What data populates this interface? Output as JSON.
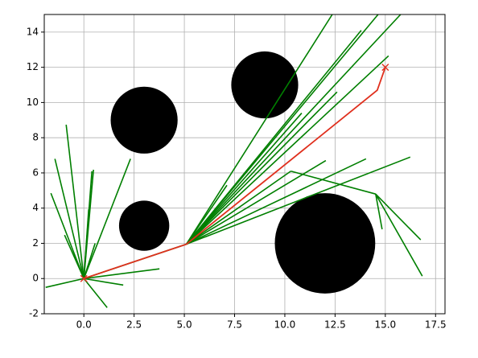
{
  "chart_data": {
    "type": "tree",
    "xlim": [
      -1.97,
      17.97
    ],
    "ylim": [
      -2,
      15
    ],
    "xticks": [
      {
        "value": 0,
        "label": "0.0"
      },
      {
        "value": 2.5,
        "label": "2.5"
      },
      {
        "value": 5,
        "label": "5.0"
      },
      {
        "value": 7.5,
        "label": "7.5"
      },
      {
        "value": 10,
        "label": "10.0"
      },
      {
        "value": 12.5,
        "label": "12.5"
      },
      {
        "value": 15,
        "label": "15.0"
      },
      {
        "value": 17.5,
        "label": "17.5"
      }
    ],
    "yticks": [
      -2,
      0,
      2,
      4,
      6,
      8,
      10,
      12,
      14
    ],
    "grid": true,
    "obstacles": {
      "color": "#000000",
      "x": [
        3,
        3,
        9,
        12
      ],
      "y": [
        9,
        3,
        11,
        2
      ],
      "size": [
        2,
        1.5,
        2,
        3
      ]
    },
    "tree": {
      "color": "#007f00",
      "edges": [
        [
          0,
          0,
          -1.9,
          -0.5
        ],
        [
          0,
          0,
          -1.64,
          4.85
        ],
        [
          0,
          0,
          -1.44,
          6.8
        ],
        [
          0,
          0,
          -0.88,
          8.74
        ],
        [
          0,
          0,
          -0.96,
          2.47
        ],
        [
          0,
          0,
          1.16,
          -1.65
        ],
        [
          0,
          0,
          1.96,
          -0.37
        ],
        [
          0,
          0,
          3.76,
          0.55
        ],
        [
          0,
          0,
          2.32,
          6.8
        ],
        [
          0,
          0,
          0.48,
          6.18
        ],
        [
          0,
          0,
          0.4,
          6.1
        ],
        [
          0,
          0,
          0.24,
          3.93
        ],
        [
          0,
          0,
          0.56,
          2.0
        ],
        [
          0,
          0,
          5.1,
          1.95
        ],
        [
          5.1,
          1.95,
          7.12,
          5.3
        ],
        [
          5.1,
          1.95,
          12.36,
          15
        ],
        [
          5.1,
          1.95,
          13.8,
          14.1
        ],
        [
          5.1,
          1.95,
          14.64,
          15
        ],
        [
          5.1,
          1.95,
          15.16,
          12.65
        ],
        [
          5.1,
          1.95,
          15.76,
          15
        ],
        [
          5.1,
          1.95,
          12.6,
          10.6
        ],
        [
          5.1,
          1.95,
          10.84,
          9.4
        ],
        [
          5.1,
          1.95,
          12.04,
          6.7
        ],
        [
          5.1,
          1.95,
          14.04,
          6.8
        ],
        [
          5.1,
          1.95,
          16.24,
          6.9
        ],
        [
          5.1,
          1.95,
          10.3,
          6.1
        ],
        [
          10.3,
          6.1,
          14.52,
          4.8
        ],
        [
          14.52,
          4.8,
          16.76,
          2.2
        ],
        [
          14.52,
          4.8,
          16.84,
          0.14
        ],
        [
          14.52,
          4.8,
          14.84,
          2.8
        ]
      ]
    },
    "path": {
      "color": "#e0301e",
      "x": [
        0,
        5.1,
        14.6,
        15
      ],
      "y": [
        0,
        1.95,
        10.7,
        12
      ]
    }
  }
}
